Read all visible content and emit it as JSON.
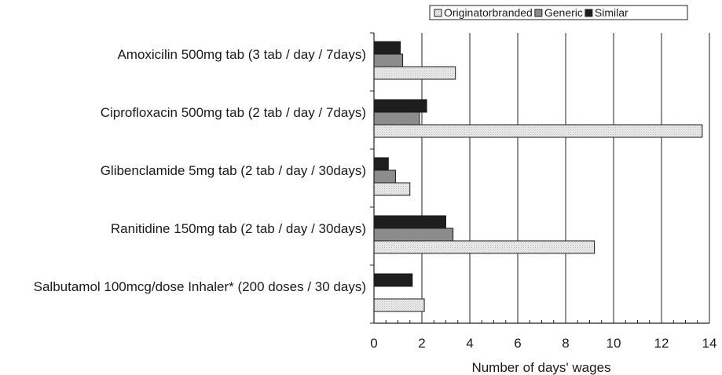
{
  "chart_data": {
    "type": "bar",
    "orientation": "horizontal",
    "categories": [
      "Amoxicilin 500mg tab (3 tab / day / 7days)",
      "Ciprofloxacin 500mg tab (2 tab / day / 7days)",
      "Glibenclamide 5mg tab (2 tab / day / 30days)",
      "Ranitidine 150mg tab (2 tab / day / 30days)",
      "Salbutamol 100mcg/dose Inhaler* (200 doses / 30 days)"
    ],
    "series": [
      {
        "name": "Originatorbranded",
        "color": "#e6e6e6",
        "values": [
          3.4,
          13.7,
          1.5,
          9.2,
          2.1
        ]
      },
      {
        "name": "Generic",
        "color": "#8c8c8c",
        "values": [
          1.2,
          1.9,
          0.9,
          3.3,
          null
        ]
      },
      {
        "name": "Similar",
        "color": "#1e1e1e",
        "values": [
          1.1,
          2.2,
          0.6,
          3.0,
          1.6
        ]
      }
    ],
    "xlabel": "Number of days' wages",
    "ylabel": "",
    "xlim": [
      0,
      14
    ],
    "xticks": [
      0,
      2,
      4,
      6,
      8,
      10,
      12,
      14
    ],
    "grid": "vertical major lines",
    "legend": "top-right"
  }
}
